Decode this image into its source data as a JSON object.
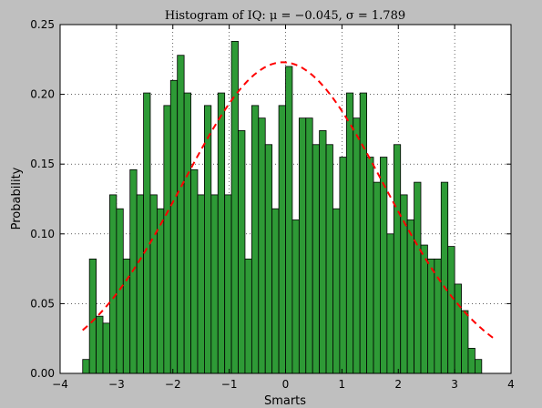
{
  "chart_data": {
    "type": "bar",
    "title": "Histogram of IQ: μ = −0.045, σ = 1.789",
    "xlabel": "Smarts",
    "ylabel": "Probability",
    "xlim": [
      -4,
      4
    ],
    "ylim": [
      0,
      0.25
    ],
    "xticks": [
      -4,
      -3,
      -2,
      -1,
      0,
      1,
      2,
      3,
      4
    ],
    "xtick_labels": [
      "−4",
      "−3",
      "−2",
      "−1",
      "0",
      "1",
      "2",
      "3",
      "4"
    ],
    "yticks": [
      0.0,
      0.05,
      0.1,
      0.15,
      0.2,
      0.25
    ],
    "ytick_labels": [
      "0.00",
      "0.05",
      "0.10",
      "0.15",
      "0.20",
      "0.25"
    ],
    "grid": true,
    "bar_color": "#2e9a36",
    "bar_edge_color": "#000000",
    "curve_color": "#ff0000",
    "bins": {
      "start": -3.6,
      "width": 0.12,
      "values": [
        0.01,
        0.082,
        0.041,
        0.036,
        0.128,
        0.118,
        0.082,
        0.146,
        0.128,
        0.201,
        0.128,
        0.118,
        0.192,
        0.21,
        0.228,
        0.201,
        0.146,
        0.128,
        0.192,
        0.128,
        0.201,
        0.128,
        0.238,
        0.174,
        0.082,
        0.192,
        0.183,
        0.164,
        0.118,
        0.192,
        0.22,
        0.11,
        0.183,
        0.183,
        0.164,
        0.174,
        0.164,
        0.118,
        0.155,
        0.201,
        0.183,
        0.201,
        0.155,
        0.137,
        0.155,
        0.1,
        0.164,
        0.128,
        0.11,
        0.137,
        0.092,
        0.082,
        0.082,
        0.137,
        0.091,
        0.064,
        0.045,
        0.018,
        0.01
      ]
    },
    "fit_curve": {
      "type": "normal_pdf",
      "mu": -0.045,
      "sigma": 1.789,
      "x_range": [
        -3.6,
        3.7
      ],
      "style": "dashed"
    }
  }
}
